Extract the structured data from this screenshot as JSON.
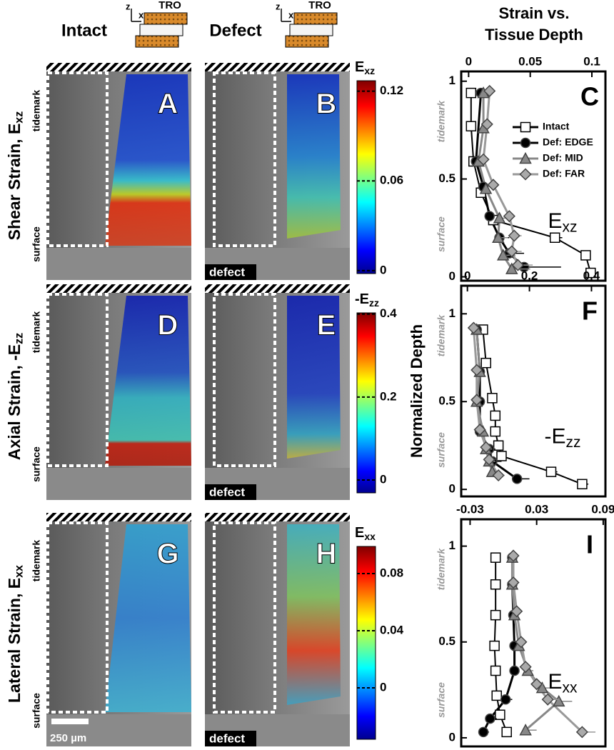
{
  "figure": {
    "columns": [
      "Intact",
      "Defect"
    ],
    "icon": {
      "z": "z",
      "x": "x",
      "label": "TRO"
    },
    "header": [
      "Strain vs.",
      "Tissue Depth"
    ],
    "rows": [
      {
        "label": "Shear Strain, E",
        "sub": "xz"
      },
      {
        "label": "Axial Strain, -E",
        "sub": "zz"
      },
      {
        "label": "Lateral Strain, E",
        "sub": "xx"
      }
    ],
    "panels": [
      "A",
      "B",
      "D",
      "E",
      "G",
      "H"
    ],
    "tidemark": "tidemark",
    "surface": "surface",
    "defect": "defect",
    "scale_bar": "250 µm",
    "colorbars": [
      {
        "label": "E",
        "sub": "xz",
        "lim": [
          -0.002,
          0.127
        ],
        "ticks": [
          0,
          0.06,
          0.12
        ]
      },
      {
        "label": "-E",
        "sub": "zz",
        "lim": [
          -0.031,
          0.403
        ],
        "ticks": [
          0,
          0.2,
          0.4
        ]
      },
      {
        "label": "E",
        "sub": "xx",
        "lim": [
          -0.036,
          0.099
        ],
        "ticks": [
          0,
          0.04,
          0.08
        ]
      }
    ]
  },
  "chart_data": [
    {
      "type": "line",
      "label": "C",
      "annotation": {
        "text": "E",
        "sub": "xz"
      },
      "legend": "upper right",
      "xlim": [
        -0.006,
        0.111
      ],
      "xticks": [
        0,
        0.05,
        0.1
      ],
      "ylim": [
        -0.02,
        1.05
      ],
      "yticks": [
        0,
        0.5,
        1
      ],
      "series": [
        {
          "name": "Intact",
          "color": "#000000",
          "fill": "#ffffff",
          "marker": "square",
          "y": [
            0.94,
            0.77,
            0.59,
            0.43,
            0.29,
            0.2,
            0.11,
            0.02
          ],
          "x": [
            0.002,
            0.002,
            0.004,
            0.01,
            0.02,
            0.07,
            0.095,
            0.099
          ],
          "xerr": [
            0,
            0,
            0,
            0,
            0.003,
            0.006,
            0.003,
            0.003
          ]
        },
        {
          "name": "Def: EDGE",
          "color": "#000000",
          "fill": "#000000",
          "marker": "circle",
          "y": [
            0.94,
            0.59,
            0.46,
            0.31,
            0.2,
            0.12,
            0.05
          ],
          "x": [
            0.01,
            0.006,
            0.012,
            0.017,
            0.025,
            0.033,
            0.045
          ],
          "xerr": [
            0,
            0,
            0.003,
            0.003,
            0.008,
            0.012,
            0.03
          ]
        },
        {
          "name": "Def: MID",
          "color": "#888888",
          "fill": "#888888",
          "marker": "triangle",
          "y": [
            0.94,
            0.76,
            0.59,
            0.45,
            0.3,
            0.2,
            0.11,
            0.04
          ],
          "x": [
            0.012,
            0.012,
            0.008,
            0.014,
            0.025,
            0.024,
            0.028,
            0.035
          ],
          "xerr": [
            0,
            0,
            0,
            0.002,
            0.006,
            0.008,
            0.01,
            0.015
          ]
        },
        {
          "name": "Def: FAR",
          "color": "#999999",
          "fill": "#aaaaaa",
          "marker": "diamond",
          "y": [
            0.95,
            0.78,
            0.6,
            0.47,
            0.31,
            0.21,
            0.13,
            0.06
          ],
          "x": [
            0.017,
            0.015,
            0.012,
            0.02,
            0.033,
            0.037,
            0.035,
            0.04
          ],
          "xerr": [
            0,
            0,
            0,
            0.002,
            0.004,
            0.006,
            0.008,
            0.012
          ]
        }
      ]
    },
    {
      "type": "line",
      "label": "F",
      "annotation": {
        "text": "-E",
        "sub": "zz"
      },
      "ylabel": "Normalized Depth",
      "xlim": [
        -0.02,
        0.445
      ],
      "xticks": [
        0,
        0.2,
        0.4
      ],
      "ylim": [
        -0.04,
        1.16
      ],
      "yticks": [
        0,
        0.5,
        1
      ],
      "series": [
        {
          "name": "Intact",
          "color": "#000000",
          "fill": "#ffffff",
          "marker": "square",
          "y": [
            0.91,
            0.72,
            0.52,
            0.42,
            0.33,
            0.25,
            0.19,
            0.1,
            0.03
          ],
          "x": [
            0.05,
            0.06,
            0.08,
            0.09,
            0.09,
            0.1,
            0.11,
            0.27,
            0.37
          ],
          "xerr": [
            0,
            0,
            0,
            0,
            0,
            0.01,
            0.01,
            0.02,
            0.02
          ]
        },
        {
          "name": "Def: EDGE",
          "color": "#000000",
          "fill": "#000000",
          "marker": "circle",
          "y": [
            0.91,
            0.67,
            0.5,
            0.33,
            0.23,
            0.16,
            0.06
          ],
          "x": [
            0.03,
            0.04,
            0.04,
            0.04,
            0.07,
            0.08,
            0.16
          ],
          "xerr": [
            0,
            0,
            0,
            0.01,
            0.02,
            0.03,
            0.04
          ]
        },
        {
          "name": "Def: MID",
          "color": "#888888",
          "fill": "#888888",
          "marker": "triangle",
          "y": [
            0.91,
            0.67,
            0.5,
            0.33,
            0.23,
            0.16,
            0.1
          ],
          "x": [
            0.03,
            0.04,
            0.03,
            0.05,
            0.06,
            0.07,
            0.08
          ],
          "xerr": [
            0,
            0,
            0,
            0.01,
            0.02,
            0.02,
            0.02
          ]
        },
        {
          "name": "Def: FAR",
          "color": "#999999",
          "fill": "#aaaaaa",
          "marker": "diamond",
          "y": [
            0.92,
            0.68,
            0.51,
            0.34,
            0.24,
            0.17,
            0.08
          ],
          "x": [
            0.02,
            0.03,
            0.03,
            0.04,
            0.06,
            0.07,
            0.1
          ],
          "xerr": [
            0,
            0,
            0,
            0.01,
            0.01,
            0.02,
            0.02
          ]
        }
      ]
    },
    {
      "type": "line",
      "label": "I",
      "annotation": {
        "text": "E",
        "sub": "xx"
      },
      "xlim": [
        -0.038,
        0.092
      ],
      "xticks": [
        -0.03,
        0.03,
        0.09
      ],
      "ylim": [
        -0.045,
        1.14
      ],
      "yticks": [
        0,
        0.5,
        1
      ],
      "series": [
        {
          "name": "Intact",
          "color": "#000000",
          "fill": "#ffffff",
          "marker": "square",
          "y": [
            0.94,
            0.8,
            0.64,
            0.48,
            0.35,
            0.22,
            0.12,
            0.03
          ],
          "x": [
            -0.007,
            -0.007,
            -0.007,
            -0.008,
            -0.007,
            -0.006,
            -0.003,
            0.003
          ],
          "xerr": [
            0,
            0,
            0,
            0,
            0,
            0.002,
            0.003,
            0.004
          ]
        },
        {
          "name": "Def: EDGE",
          "color": "#000000",
          "fill": "#000000",
          "marker": "circle",
          "y": [
            0.94,
            0.8,
            0.64,
            0.48,
            0.35,
            0.2,
            0.1,
            0.03
          ],
          "x": [
            0.008,
            0.008,
            0.009,
            0.01,
            0.01,
            0.002,
            -0.012,
            -0.018
          ],
          "xerr": [
            0,
            0,
            0.002,
            0.003,
            0.004,
            0.006,
            0.006,
            0.005
          ]
        },
        {
          "name": "Def: MID",
          "color": "#888888",
          "fill": "#888888",
          "marker": "triangle",
          "y": [
            0.94,
            0.8,
            0.64,
            0.48,
            0.35,
            0.26,
            0.19,
            0.04
          ],
          "x": [
            0.008,
            0.008,
            0.01,
            0.014,
            0.022,
            0.035,
            0.05,
            0.02
          ],
          "xerr": [
            0,
            0,
            0.002,
            0.003,
            0.005,
            0.008,
            0.012,
            0.01
          ]
        },
        {
          "name": "Def: FAR",
          "color": "#999999",
          "fill": "#aaaaaa",
          "marker": "diamond",
          "y": [
            0.95,
            0.81,
            0.66,
            0.5,
            0.37,
            0.28,
            0.2,
            0.03
          ],
          "x": [
            0.009,
            0.009,
            0.012,
            0.016,
            0.02,
            0.03,
            0.04,
            0.071
          ],
          "xerr": [
            0,
            0,
            0.002,
            0.003,
            0.004,
            0.006,
            0.01,
            0.012
          ]
        }
      ]
    }
  ]
}
